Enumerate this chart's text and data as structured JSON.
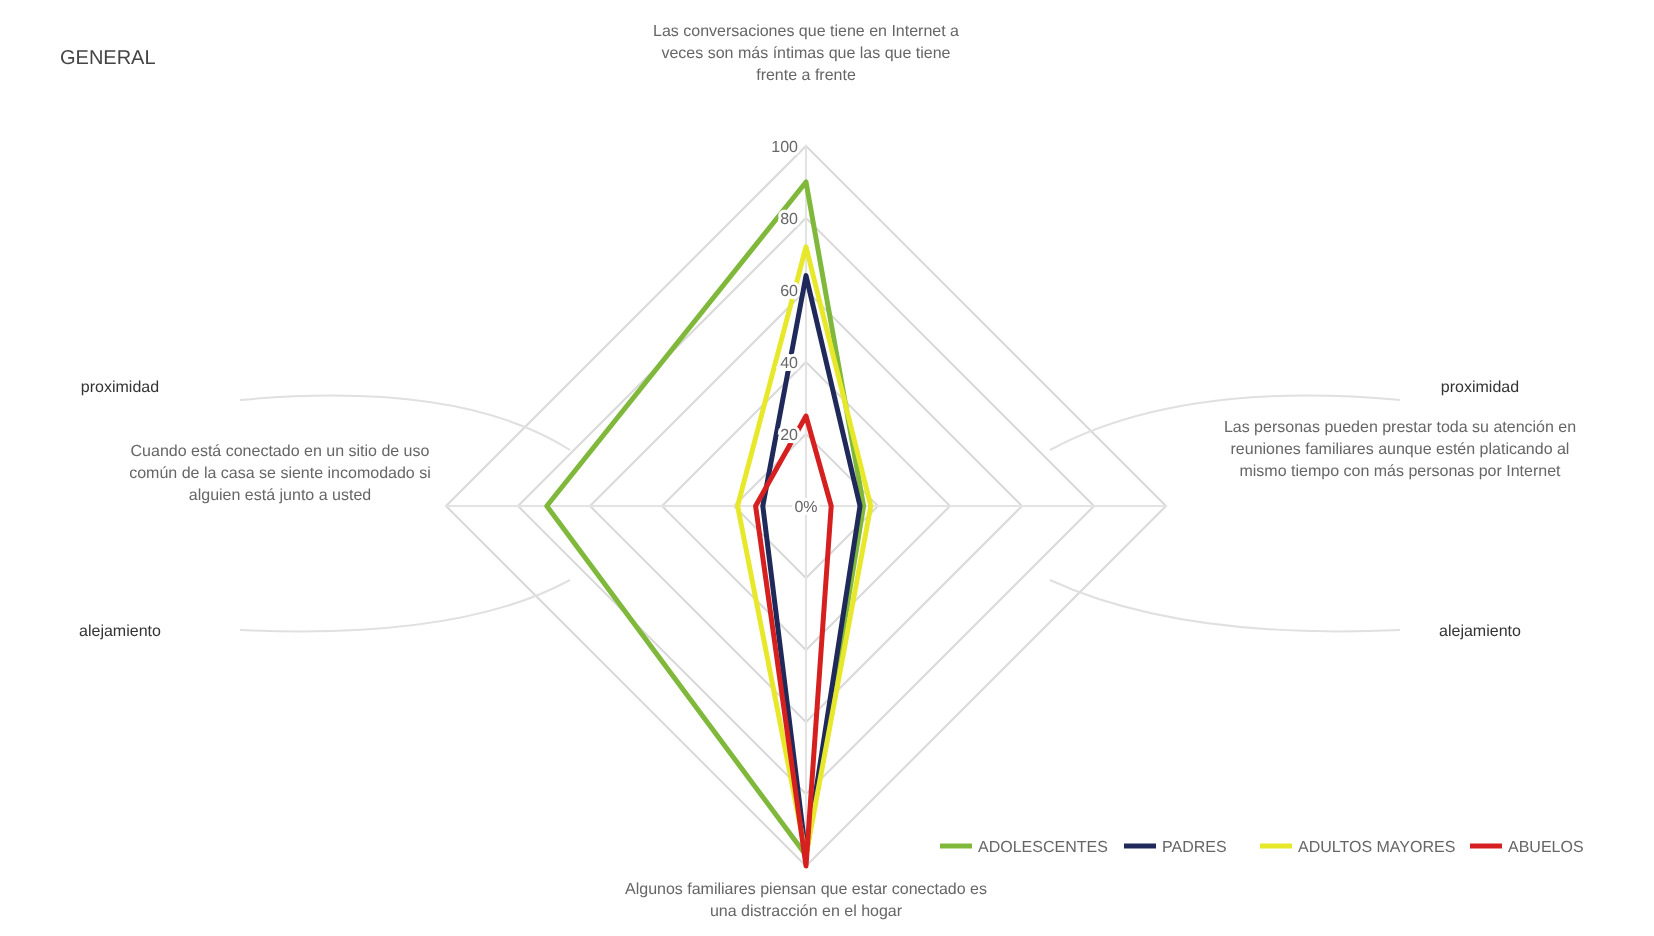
{
  "chart_data": {
    "type": "radar",
    "title": "GENERAL",
    "categories": [
      "Las conversaciones que tiene en Internet a veces son más íntimas que las que tiene frente a frente",
      "Las personas pueden prestar toda su atención en reuniones familiares aunque estén platicando al mismo tiempo con más personas por Internet",
      "Algunos familiares piensan que estar conectado es una distracción en el hogar",
      "Cuando está conectado en un sitio de uso común de la casa se siente incomodado si alguien está junto a usted"
    ],
    "series": [
      {
        "name": "ADOLESCENTES",
        "color": "#7fb83a",
        "values": [
          90,
          16,
          97,
          72
        ]
      },
      {
        "name": "PADRES",
        "color": "#1f2a5a",
        "values": [
          64,
          15,
          97,
          12
        ]
      },
      {
        "name": "ADULTOS MAYORES",
        "color": "#e8e82a",
        "values": [
          72,
          18,
          97,
          19
        ]
      },
      {
        "name": "ABUELOS",
        "color": "#d62020",
        "values": [
          25,
          7,
          100,
          14
        ]
      }
    ],
    "ylim": [
      0,
      100
    ],
    "yticks": [
      {
        "value": 0,
        "label": "0%"
      },
      20,
      40,
      60,
      80,
      100
    ],
    "legend": "bottom right",
    "annotations": [
      "proximidad",
      "alejamiento",
      "proximidad",
      "alejamiento"
    ]
  }
}
